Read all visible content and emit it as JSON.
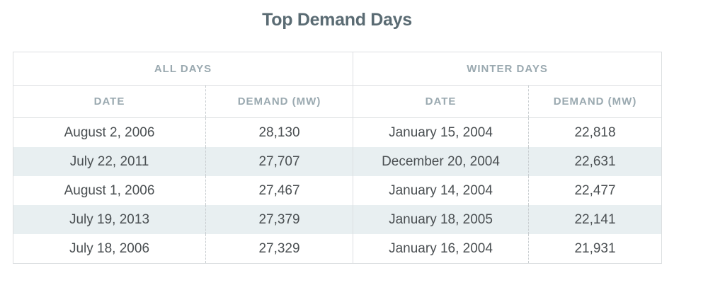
{
  "title": "Top Demand Days",
  "groups": [
    "ALL DAYS",
    "WINTER DAYS"
  ],
  "columns": [
    "DATE",
    "DEMAND (MW)",
    "DATE",
    "DEMAND (MW)"
  ],
  "rows": [
    [
      "August 2, 2006",
      "28,130",
      "January 15, 2004",
      "22,818"
    ],
    [
      "July 22, 2011",
      "27,707",
      "December 20, 2004",
      "22,631"
    ],
    [
      "August 1, 2006",
      "27,467",
      "January 14, 2004",
      "22,477"
    ],
    [
      "July 19, 2013",
      "27,379",
      "January 18, 2005",
      "22,141"
    ],
    [
      "July 18, 2006",
      "27,329",
      "January 16, 2004",
      "21,931"
    ]
  ]
}
